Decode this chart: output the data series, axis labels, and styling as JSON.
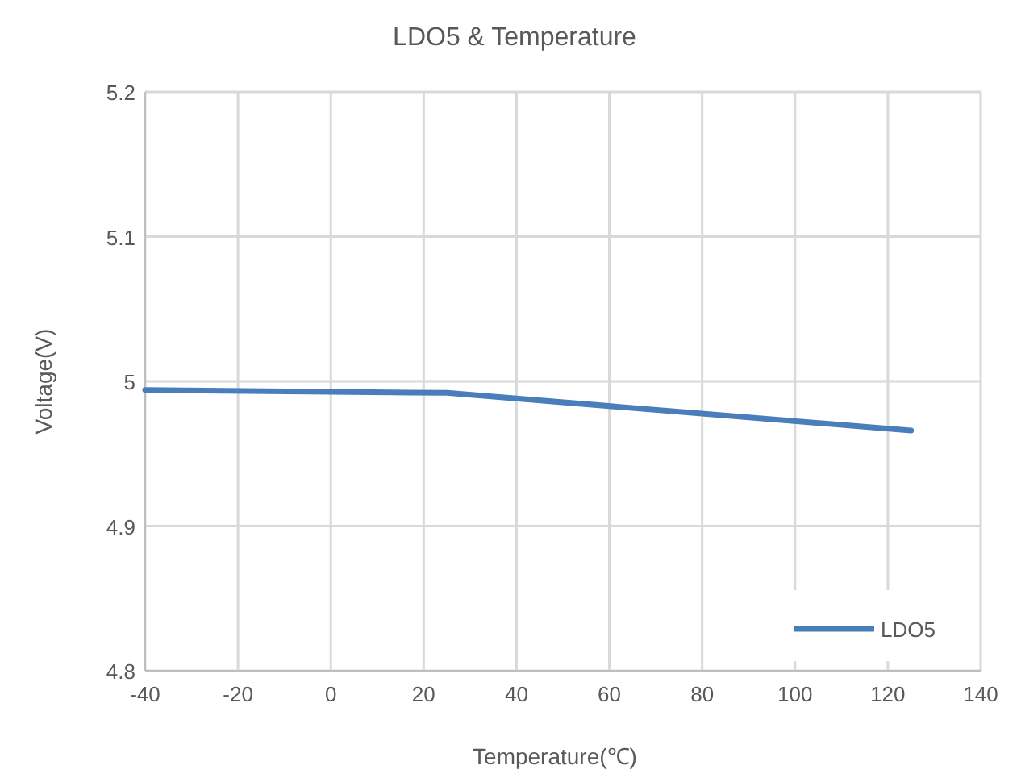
{
  "chart_data": {
    "type": "line",
    "title": "LDO5 & Temperature",
    "xlabel": "Temperature(℃)",
    "ylabel": "Voltage(V)",
    "x": [
      -40,
      25,
      125
    ],
    "series": [
      {
        "name": "LDO5",
        "color": "#4a7ebb",
        "values": [
          4.994,
          4.992,
          4.966
        ]
      }
    ],
    "xlim": [
      -40,
      140
    ],
    "xticks": [
      -40,
      -20,
      0,
      20,
      40,
      60,
      80,
      100,
      120,
      140
    ],
    "ylim": [
      4.8,
      5.2
    ],
    "yticks": [
      4.8,
      4.9,
      {
        "value": 5,
        "label": "5"
      },
      5.1,
      5.2
    ],
    "grid": true,
    "legend": "bottom right",
    "marker": "none",
    "line_style": "solid"
  }
}
